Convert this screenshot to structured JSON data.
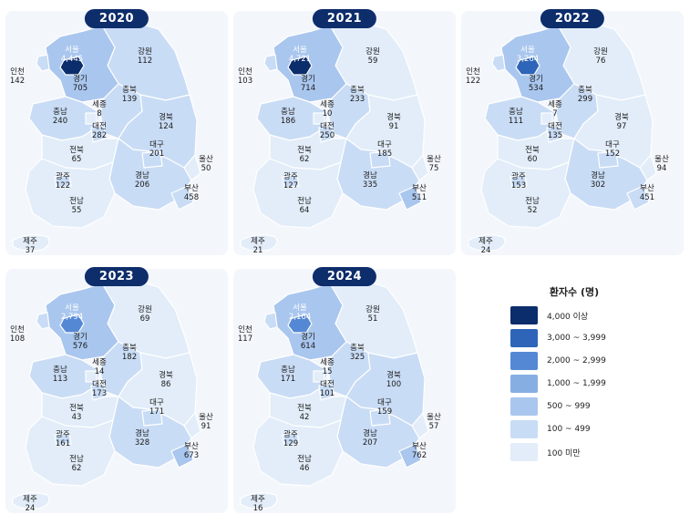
{
  "legend": {
    "title": "환자수 (명)",
    "bins": [
      {
        "label": "4,000 이상",
        "color": "#0c2d6b"
      },
      {
        "label": "3,000 ~ 3,999",
        "color": "#2e65b8"
      },
      {
        "label": "2,000 ~ 2,999",
        "color": "#5588d4"
      },
      {
        "label": "1,000 ~ 1,999",
        "color": "#86aee3"
      },
      {
        "label": "500 ~ 999",
        "color": "#a9c6ee"
      },
      {
        "label": "100 ~ 499",
        "color": "#c9dcf5"
      },
      {
        "label": "100 미만",
        "color": "#e2edf9"
      }
    ]
  },
  "maps": [
    {
      "year": "2020",
      "regions": {
        "seoul": {
          "name": "서울",
          "value": "4,445"
        },
        "gangwon": {
          "name": "강원",
          "value": "112"
        },
        "incheon": {
          "name": "인천",
          "value": "142"
        },
        "gyeonggi": {
          "name": "경기",
          "value": "705"
        },
        "chungbuk": {
          "name": "충북",
          "value": "139"
        },
        "chungnam": {
          "name": "충남",
          "value": "240"
        },
        "sejong": {
          "name": "세종",
          "value": "8"
        },
        "gyeongbuk": {
          "name": "경북",
          "value": "124"
        },
        "daejeon": {
          "name": "대전",
          "value": "282"
        },
        "daegu": {
          "name": "대구",
          "value": "201"
        },
        "jeonbuk": {
          "name": "전북",
          "value": "65"
        },
        "ulsan": {
          "name": "울산",
          "value": "50"
        },
        "gwangju": {
          "name": "광주",
          "value": "122"
        },
        "gyeongnam": {
          "name": "경남",
          "value": "206"
        },
        "busan": {
          "name": "부산",
          "value": "458"
        },
        "jeonnam": {
          "name": "전남",
          "value": "55"
        },
        "jeju": {
          "name": "제주",
          "value": "37"
        }
      }
    },
    {
      "year": "2021",
      "regions": {
        "seoul": {
          "name": "서울",
          "value": "4,721"
        },
        "gangwon": {
          "name": "강원",
          "value": "59"
        },
        "incheon": {
          "name": "인천",
          "value": "103"
        },
        "gyeonggi": {
          "name": "경기",
          "value": "714"
        },
        "chungbuk": {
          "name": "충북",
          "value": "233"
        },
        "chungnam": {
          "name": "충남",
          "value": "186"
        },
        "sejong": {
          "name": "세종",
          "value": "10"
        },
        "gyeongbuk": {
          "name": "경북",
          "value": "91"
        },
        "daejeon": {
          "name": "대전",
          "value": "250"
        },
        "daegu": {
          "name": "대구",
          "value": "185"
        },
        "jeonbuk": {
          "name": "전북",
          "value": "62"
        },
        "ulsan": {
          "name": "울산",
          "value": "75"
        },
        "gwangju": {
          "name": "광주",
          "value": "127"
        },
        "gyeongnam": {
          "name": "경남",
          "value": "335"
        },
        "busan": {
          "name": "부산",
          "value": "511"
        },
        "jeonnam": {
          "name": "전남",
          "value": "64"
        },
        "jeju": {
          "name": "제주",
          "value": "21"
        }
      }
    },
    {
      "year": "2022",
      "regions": {
        "seoul": {
          "name": "서울",
          "value": "3,264"
        },
        "gangwon": {
          "name": "강원",
          "value": "76"
        },
        "incheon": {
          "name": "인천",
          "value": "122"
        },
        "gyeonggi": {
          "name": "경기",
          "value": "534"
        },
        "chungbuk": {
          "name": "충북",
          "value": "299"
        },
        "chungnam": {
          "name": "충남",
          "value": "111"
        },
        "sejong": {
          "name": "세종",
          "value": "7"
        },
        "gyeongbuk": {
          "name": "경북",
          "value": "97"
        },
        "daejeon": {
          "name": "대전",
          "value": "135"
        },
        "daegu": {
          "name": "대구",
          "value": "152"
        },
        "jeonbuk": {
          "name": "전북",
          "value": "60"
        },
        "ulsan": {
          "name": "울산",
          "value": "94"
        },
        "gwangju": {
          "name": "광주",
          "value": "153"
        },
        "gyeongnam": {
          "name": "경남",
          "value": "302"
        },
        "busan": {
          "name": "부산",
          "value": "451"
        },
        "jeonnam": {
          "name": "전남",
          "value": "52"
        },
        "jeju": {
          "name": "제주",
          "value": "24"
        }
      }
    },
    {
      "year": "2023",
      "regions": {
        "seoul": {
          "name": "서울",
          "value": "2,794"
        },
        "gangwon": {
          "name": "강원",
          "value": "69"
        },
        "incheon": {
          "name": "인천",
          "value": "108"
        },
        "gyeonggi": {
          "name": "경기",
          "value": "576"
        },
        "chungbuk": {
          "name": "충북",
          "value": "182"
        },
        "chungnam": {
          "name": "충남",
          "value": "113"
        },
        "sejong": {
          "name": "세종",
          "value": "14"
        },
        "gyeongbuk": {
          "name": "경북",
          "value": "86"
        },
        "daejeon": {
          "name": "대전",
          "value": "173"
        },
        "daegu": {
          "name": "대구",
          "value": "171"
        },
        "jeonbuk": {
          "name": "전북",
          "value": "43"
        },
        "ulsan": {
          "name": "울산",
          "value": "91"
        },
        "gwangju": {
          "name": "광주",
          "value": "161"
        },
        "gyeongnam": {
          "name": "경남",
          "value": "328"
        },
        "busan": {
          "name": "부산",
          "value": "673"
        },
        "jeonnam": {
          "name": "전남",
          "value": "62"
        },
        "jeju": {
          "name": "제주",
          "value": "24"
        }
      }
    },
    {
      "year": "2024",
      "regions": {
        "seoul": {
          "name": "서울",
          "value": "2,164"
        },
        "gangwon": {
          "name": "강원",
          "value": "51"
        },
        "incheon": {
          "name": "인천",
          "value": "117"
        },
        "gyeonggi": {
          "name": "경기",
          "value": "614"
        },
        "chungbuk": {
          "name": "충북",
          "value": "325"
        },
        "chungnam": {
          "name": "충남",
          "value": "171"
        },
        "sejong": {
          "name": "세종",
          "value": "15"
        },
        "gyeongbuk": {
          "name": "경북",
          "value": "100"
        },
        "daejeon": {
          "name": "대전",
          "value": "101"
        },
        "daegu": {
          "name": "대구",
          "value": "159"
        },
        "jeonbuk": {
          "name": "전북",
          "value": "42"
        },
        "ulsan": {
          "name": "울산",
          "value": "57"
        },
        "gwangju": {
          "name": "광주",
          "value": "129"
        },
        "gyeongnam": {
          "name": "경남",
          "value": "207"
        },
        "busan": {
          "name": "부산",
          "value": "762"
        },
        "jeonnam": {
          "name": "전남",
          "value": "46"
        },
        "jeju": {
          "name": "제주",
          "value": "16"
        }
      }
    }
  ]
}
